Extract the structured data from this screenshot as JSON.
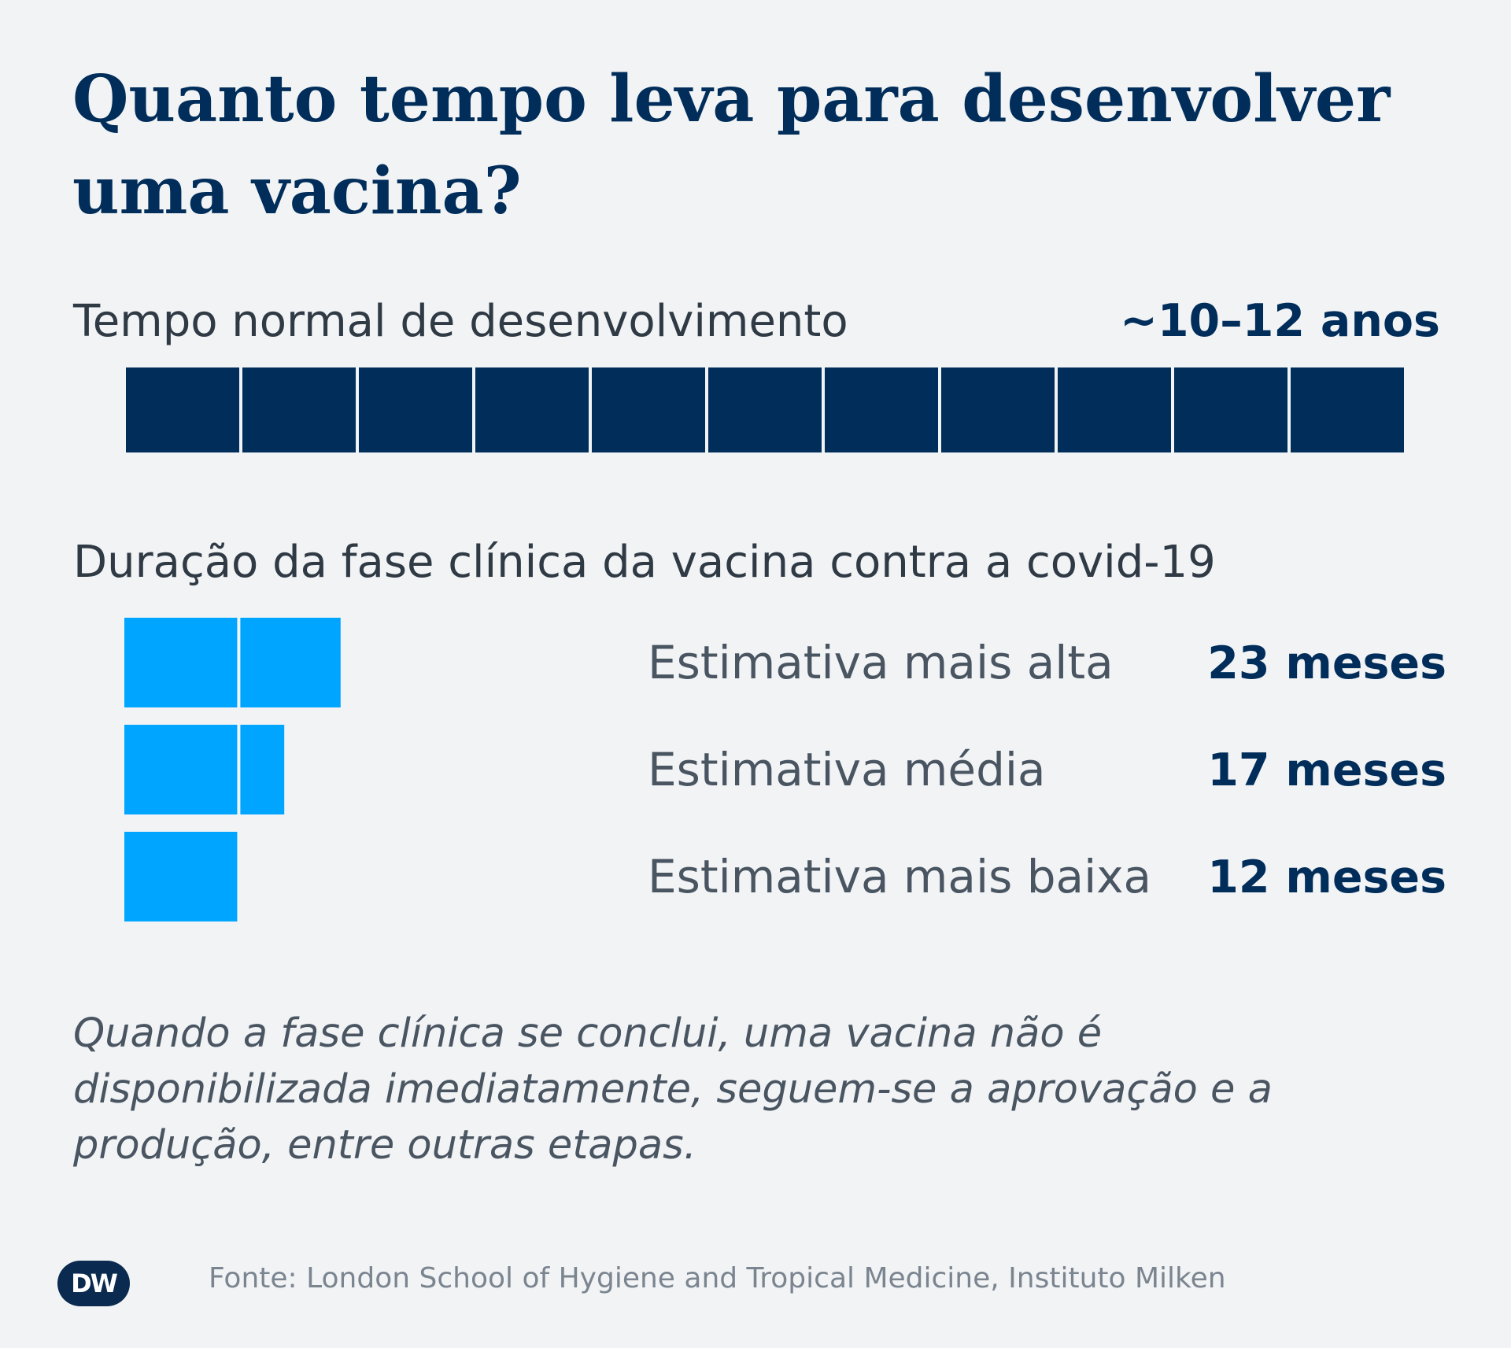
{
  "title": "Quanto tempo leva para desenvolver uma vacina?",
  "colors": {
    "background": "#f1f3f5",
    "navy": "#002d5a",
    "covid_blue": "#00a5ff",
    "text": "#2f3a45"
  },
  "chart_data": [
    {
      "type": "bar",
      "title": "Tempo normal de desenvolvimento",
      "unit": "anos",
      "segments": 11,
      "value_range": [
        10,
        12
      ],
      "value_label": "~10–12 anos"
    },
    {
      "type": "bar",
      "title": "Duração da fase clínica da vacina contra a covid-19",
      "unit": "meses",
      "categories": [
        "Estimativa mais alta",
        "Estimativa média",
        "Estimativa mais baixa"
      ],
      "values": [
        23,
        17,
        12
      ],
      "value_labels": [
        "23 meses",
        "17 meses",
        "12 meses"
      ]
    }
  ],
  "note": "Quando a fase clínica se conclui, uma vacina não é disponibilizada imediatamente, seguem-se a aprovação e a produção, entre outras etapas.",
  "source": "Fonte: London School of Hygiene and Tropical Medicine, Instituto Milken",
  "logo": "DW"
}
